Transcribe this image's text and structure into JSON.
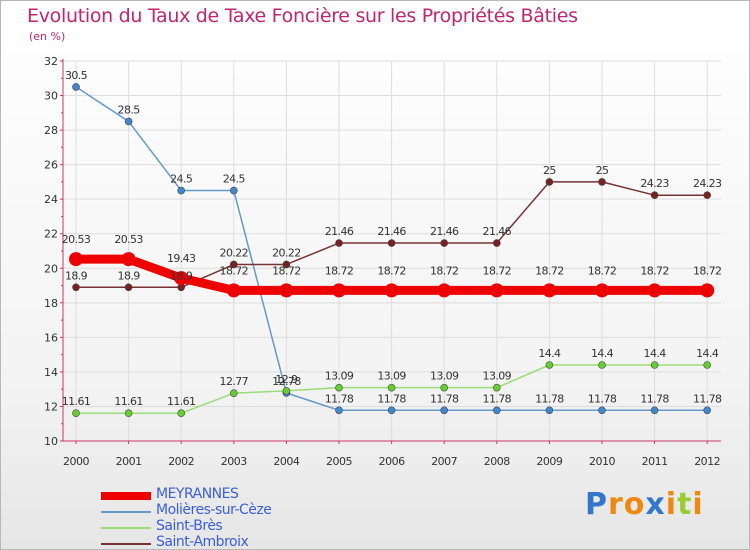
{
  "chart_data": {
    "type": "line",
    "title": "Evolution du Taux de Taxe Foncière sur les Propriétés Bâties",
    "subtitle": "(en %)",
    "xlabel": "",
    "ylabel": "",
    "x": [
      "2000",
      "2001",
      "2002",
      "2003",
      "2004",
      "2005",
      "2006",
      "2007",
      "2008",
      "2009",
      "2010",
      "2011",
      "2012"
    ],
    "yticks": [
      "10",
      "12",
      "14",
      "16",
      "18",
      "20",
      "22",
      "24",
      "26",
      "28",
      "30",
      "32"
    ],
    "ylim": [
      10,
      32
    ],
    "legend_position": "bottom-left",
    "series": [
      {
        "name": "MEYRANNES",
        "color": "#ee0000",
        "values": [
          20.53,
          20.53,
          19.43,
          18.72,
          18.72,
          18.72,
          18.72,
          18.72,
          18.72,
          18.72,
          18.72,
          18.72,
          18.72
        ],
        "labels": [
          "20.53",
          "20.53",
          "19.43",
          "18.72",
          "18.72",
          "18.72",
          "18.72",
          "18.72",
          "18.72",
          "18.72",
          "18.72",
          "18.72",
          "18.72"
        ],
        "emphasis": "thick"
      },
      {
        "name": "Molières-sur-Cèze",
        "color": "#6699cc",
        "marker_color": "#4488cc",
        "values": [
          30.5,
          28.5,
          24.5,
          24.5,
          12.78,
          11.78,
          11.78,
          11.78,
          11.78,
          11.78,
          11.78,
          11.78,
          11.78
        ],
        "labels": [
          "30.5",
          "28.5",
          "24.5",
          "24.5",
          "12.78",
          "11.78",
          "11.78",
          "11.78",
          "11.78",
          "11.78",
          "11.78",
          "11.78",
          "11.78"
        ]
      },
      {
        "name": "Saint-Brès",
        "color": "#99dd77",
        "marker_color": "#66cc33",
        "values": [
          11.61,
          11.61,
          11.61,
          12.77,
          12.9,
          13.09,
          13.09,
          13.09,
          13.09,
          14.4,
          14.4,
          14.4,
          14.4
        ],
        "labels": [
          "11.61",
          "11.61",
          "11.61",
          "12.77",
          "12.9",
          "13.09",
          "13.09",
          "13.09",
          "13.09",
          "14.4",
          "14.4",
          "14.4",
          "14.4"
        ]
      },
      {
        "name": "Saint-Ambroix",
        "color": "#773333",
        "marker_color": "#772222",
        "values": [
          18.9,
          18.9,
          18.9,
          20.22,
          20.22,
          21.46,
          21.46,
          21.46,
          21.46,
          25,
          25,
          24.23,
          24.23
        ],
        "labels": [
          "18.9",
          "18.9",
          "18.9",
          "20.22",
          "20.22",
          "21.46",
          "21.46",
          "21.46",
          "21.46",
          "25",
          "25",
          "24.23",
          "24.23"
        ]
      }
    ]
  },
  "brand": {
    "letters": [
      "P",
      "r",
      "o",
      "x",
      "i",
      "t",
      "i"
    ],
    "colors": [
      "#3377cc",
      "#ee8811",
      "#ee8811",
      "#3377cc",
      "#ee8811",
      "#99cc33",
      "#ee8811"
    ]
  }
}
